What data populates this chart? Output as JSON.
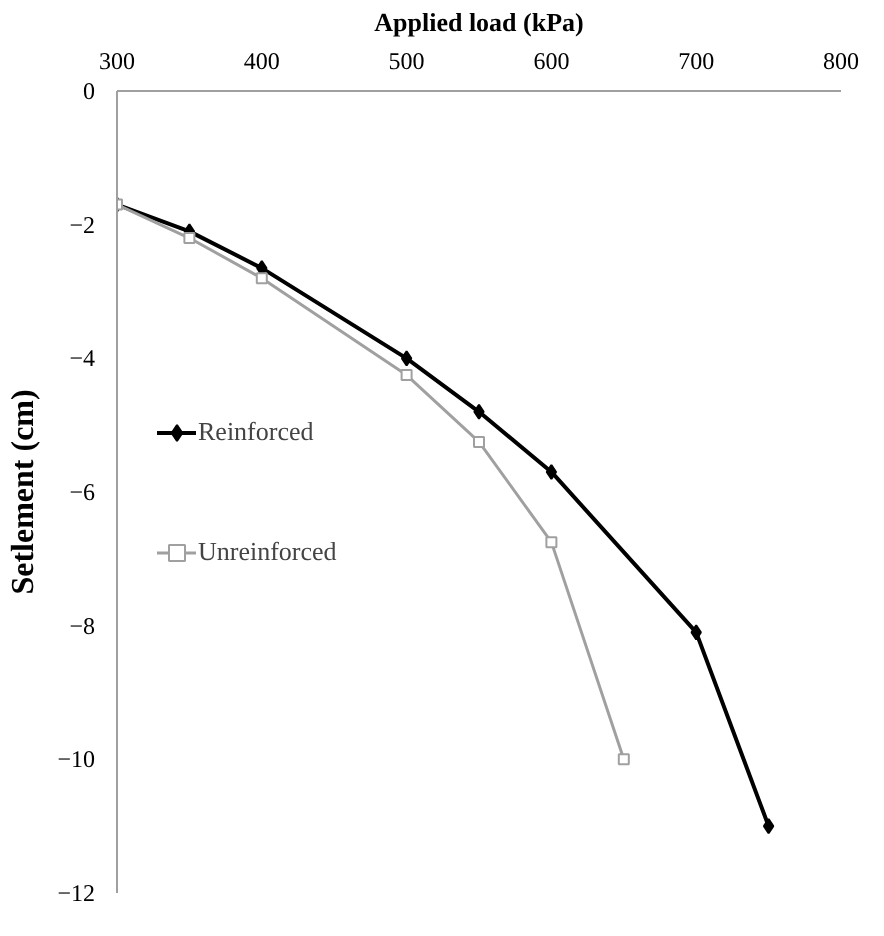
{
  "chart_data": {
    "type": "line",
    "xlabel": "Applied load (kPa)",
    "ylabel": "Setlement (cm)",
    "xlim": [
      300,
      800
    ],
    "xticks": [
      300,
      400,
      500,
      600,
      700,
      800
    ],
    "ylim": [
      -12,
      0
    ],
    "yticks": [
      -12,
      -10,
      -8,
      -6,
      -4,
      -2,
      0
    ],
    "grid": false,
    "legend": "left",
    "line_style": "solid",
    "series": [
      {
        "name": "Reinforced",
        "color": "#000000",
        "marker": "diamond",
        "x": [
          300,
          350,
          400,
          500,
          550,
          600,
          700,
          750
        ],
        "values": [
          -1.7,
          -2.1,
          -2.65,
          -4.0,
          -4.8,
          -5.7,
          -8.1,
          -11.0
        ]
      },
      {
        "name": "Unreinforced",
        "color": "#a0a0a0",
        "marker": "square",
        "x": [
          300,
          350,
          400,
          500,
          550,
          600,
          650
        ],
        "values": [
          -1.7,
          -2.2,
          -2.8,
          -4.25,
          -5.25,
          -6.75,
          -10.0
        ]
      }
    ]
  }
}
